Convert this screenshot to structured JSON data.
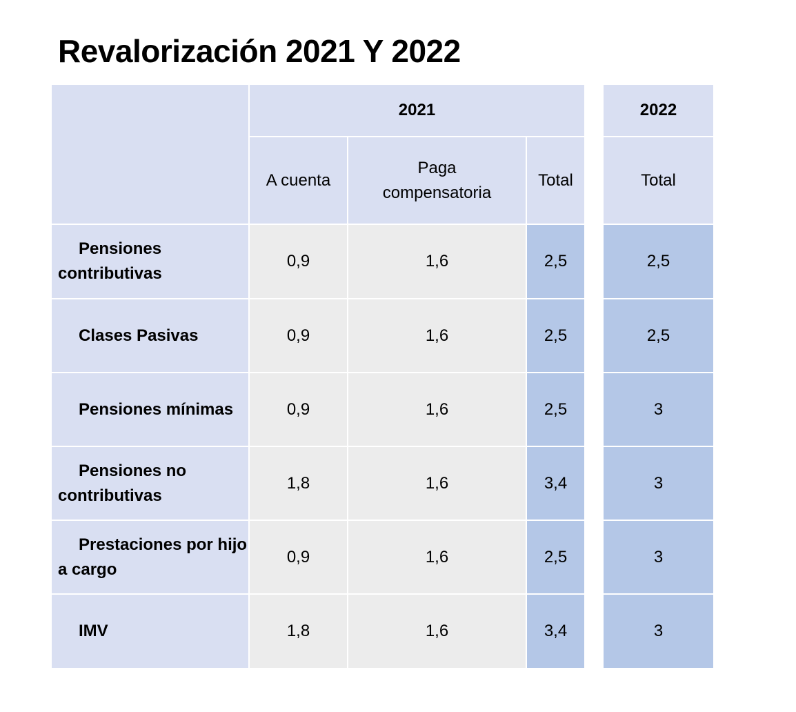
{
  "title": "Revalorización 2021 Y 2022",
  "header": {
    "group_2021": "2021",
    "group_2022": "2022",
    "col_a_cuenta": "A cuenta",
    "col_paga": "Paga compensatoria",
    "col_total_2021": "Total",
    "col_total_2022": "Total"
  },
  "rows": [
    {
      "label": "Pensiones contributivas",
      "a_cuenta": "0,9",
      "paga": "1,6",
      "total_2021": "2,5",
      "total_2022": "2,5"
    },
    {
      "label": "Clases Pasivas",
      "a_cuenta": "0,9",
      "paga": "1,6",
      "total_2021": "2,5",
      "total_2022": "2,5"
    },
    {
      "label": "Pensiones mínimas",
      "a_cuenta": "0,9",
      "paga": "1,6",
      "total_2021": "2,5",
      "total_2022": "3"
    },
    {
      "label": "Pensiones no contributivas",
      "a_cuenta": "1,8",
      "paga": "1,6",
      "total_2021": "3,4",
      "total_2022": "3"
    },
    {
      "label": "Prestaciones por hijo a cargo",
      "a_cuenta": "0,9",
      "paga": "1,6",
      "total_2021": "2,5",
      "total_2022": "3"
    },
    {
      "label": "IMV",
      "a_cuenta": "1,8",
      "paga": "1,6",
      "total_2021": "3,4",
      "total_2022": "3"
    }
  ],
  "colors": {
    "header_bg": "#d9dff2",
    "value_bg": "#ececec",
    "total_bg": "#b4c7e7"
  }
}
